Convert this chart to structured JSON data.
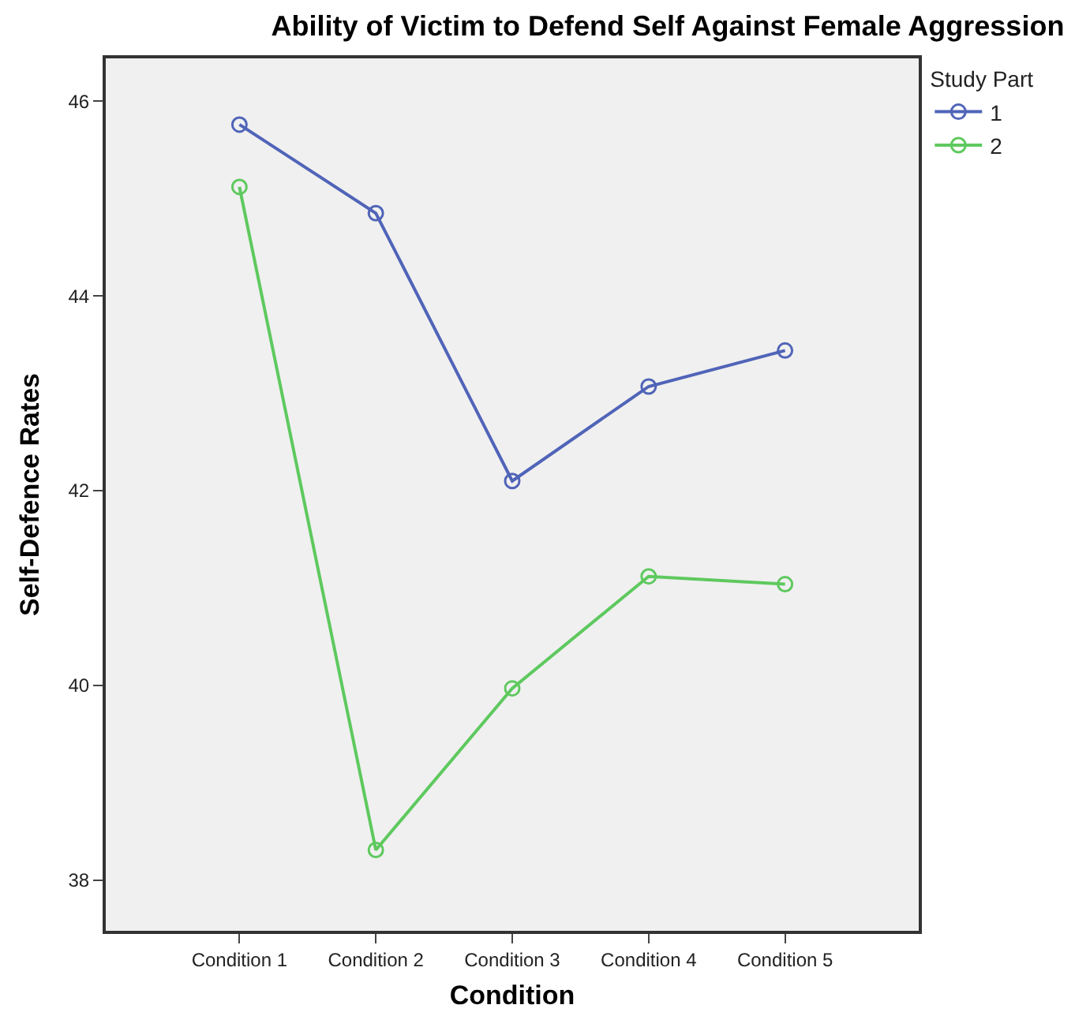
{
  "chart_data": {
    "type": "line",
    "title": "Ability of Victim to Defend Self Against Female Aggression",
    "xlabel": "Condition",
    "ylabel": "Self-Defence Rates",
    "legend_title": "Study Part",
    "categories": [
      "Condition 1",
      "Condition 2",
      "Condition 3",
      "Condition 4",
      "Condition 5"
    ],
    "series": [
      {
        "name": "1",
        "color": "#5064b8",
        "values": [
          45.76,
          44.85,
          42.1,
          43.07,
          43.44
        ]
      },
      {
        "name": "2",
        "color": "#5ec95e",
        "values": [
          45.12,
          38.31,
          39.97,
          41.12,
          41.04
        ]
      }
    ],
    "ylim": [
      37.48,
      46.44
    ],
    "yticks": [
      38,
      40,
      42,
      44,
      46
    ],
    "grid": false,
    "legend": "top right",
    "marker": "circle",
    "line_style": "solid"
  }
}
